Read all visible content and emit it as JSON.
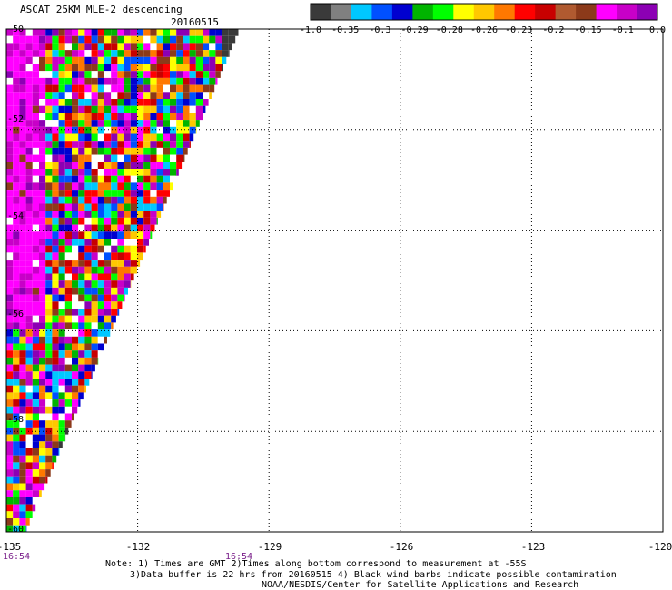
{
  "header": {
    "title": "ASCAT 25KM MLE-2 descending",
    "date": "20160515"
  },
  "colorbar": {
    "labels": [
      "-1.0",
      "-0.35",
      "-0.3",
      "-0.29",
      "-0.28",
      "-0.26",
      "-0.23",
      "-0.2",
      "-0.15",
      "-0.1",
      "0.0"
    ],
    "colors": [
      "#3a3a3a",
      "#808080",
      "#00c8ff",
      "#0050ff",
      "#0000d0",
      "#00b400",
      "#00ff00",
      "#ffff00",
      "#ffc800",
      "#ff7800",
      "#ff0000",
      "#c80000",
      "#b05a30",
      "#8c3a1a",
      "#ff00ff",
      "#c800c8",
      "#8c00b4"
    ]
  },
  "map": {
    "lon_range": [
      -135,
      -120
    ],
    "lat_range": [
      -60,
      -50
    ],
    "x_ticks": [
      "-135",
      "-132",
      "-129",
      "-126",
      "-123",
      "-120"
    ],
    "x_tick_values": [
      -135,
      -132,
      -129,
      -126,
      -123,
      -120
    ],
    "y_ticks": [
      "-50",
      "-52",
      "-54",
      "-56",
      "-58",
      "-60"
    ],
    "y_tick_values": [
      -50,
      -52,
      -54,
      -56,
      -58,
      -60
    ],
    "time_labels": [
      {
        "text": "16:54",
        "lon": -135
      },
      {
        "text": "16:54",
        "lon": -130.5
      }
    ],
    "swath_edge": [
      {
        "lon": -129.7,
        "lat": -50
      },
      {
        "lon": -134.6,
        "lat": -60
      }
    ]
  },
  "notes": [
    "Note: 1) Times are GMT 2)Times along bottom correspond to measurement at -55S",
    "3)Data buffer is 22 hrs from 20160515 4) Black wind barbs indicate possible contamination",
    "NOAA/NESDIS/Center for Satellite Applications and Research"
  ]
}
